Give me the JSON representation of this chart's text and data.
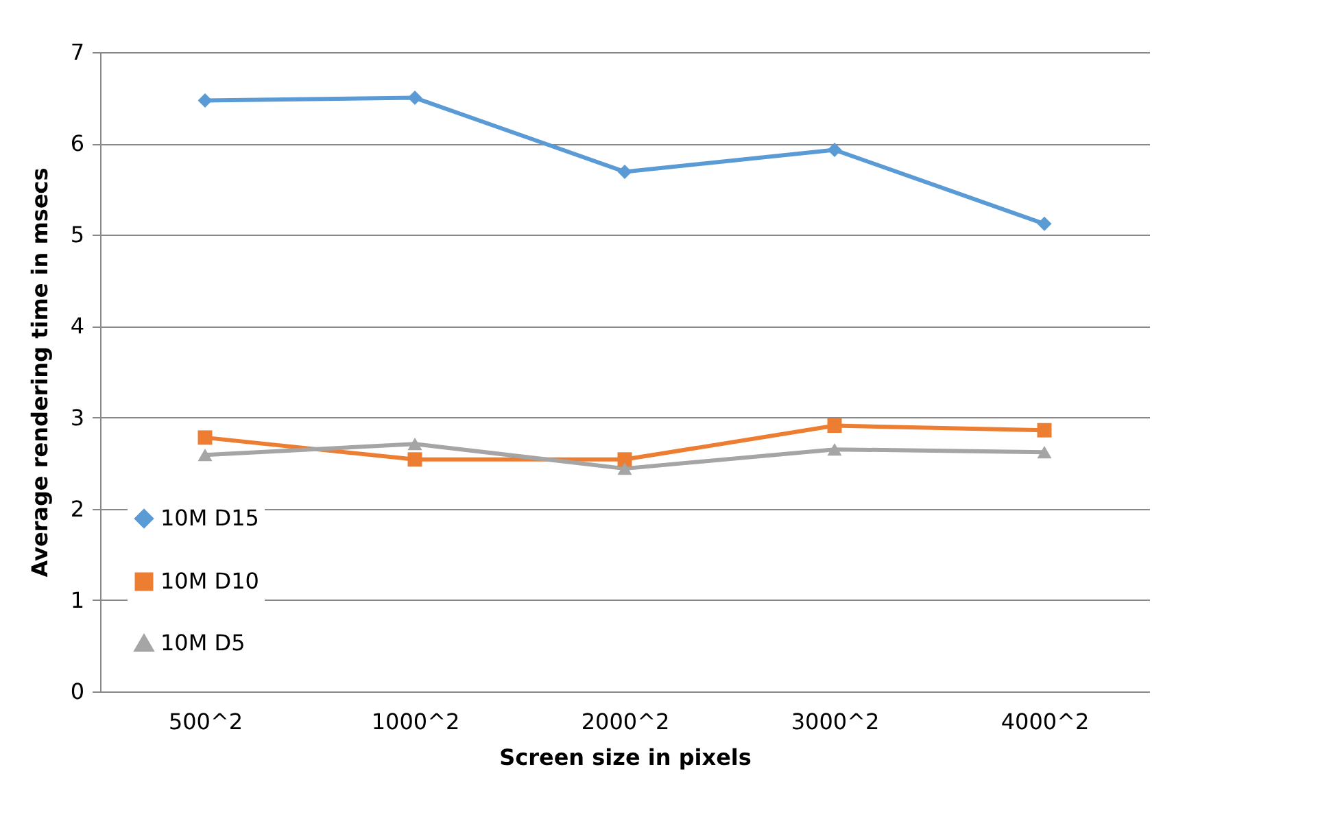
{
  "chart_data": {
    "type": "line",
    "xlabel": "Screen size in pixels",
    "ylabel": "Average rendering time in msecs",
    "categories": [
      "500^2",
      "1000^2",
      "2000^2",
      "3000^2",
      "4000^2"
    ],
    "series": [
      {
        "name": "10M D15",
        "color": "#5b9bd5",
        "marker": "diamond",
        "values": [
          6.47,
          6.5,
          5.69,
          5.93,
          5.12
        ]
      },
      {
        "name": "10M D10",
        "color": "#ed7d31",
        "marker": "square",
        "values": [
          2.78,
          2.54,
          2.54,
          2.91,
          2.86
        ]
      },
      {
        "name": "10M D5",
        "color": "#a5a5a5",
        "marker": "triangle",
        "values": [
          2.59,
          2.71,
          2.44,
          2.65,
          2.62
        ]
      }
    ],
    "ylim": [
      0,
      7
    ],
    "yticks": [
      0,
      1,
      2,
      3,
      4,
      5,
      6,
      7
    ],
    "grid": "y",
    "legend": "bottom left",
    "line_style": "solid"
  }
}
